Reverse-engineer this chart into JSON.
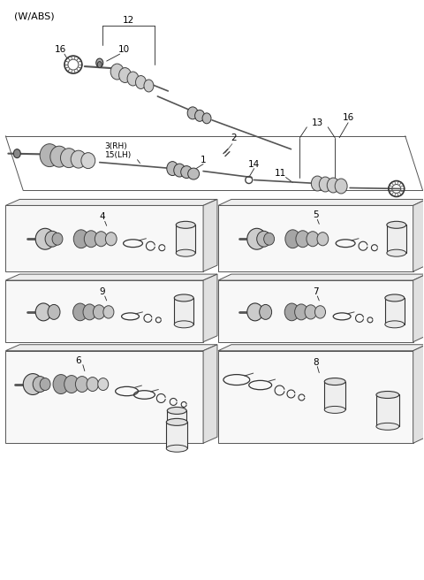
{
  "bg_color": "#ffffff",
  "lc": "#000000",
  "gc": "#888888",
  "fig_w": 4.8,
  "fig_h": 6.56,
  "dpi": 100,
  "labels": {
    "wabs": "(W/ABS)",
    "n12": "12",
    "n16a": "16",
    "n10": "10",
    "n2": "2",
    "n3": "3(RH)\n15(LH)",
    "n1": "1",
    "n14": "14",
    "n13": "13",
    "n11": "11",
    "n16b": "16",
    "n4": "4",
    "n9": "9",
    "n6": "6",
    "n5": "5",
    "n7": "7",
    "n8": "8"
  }
}
